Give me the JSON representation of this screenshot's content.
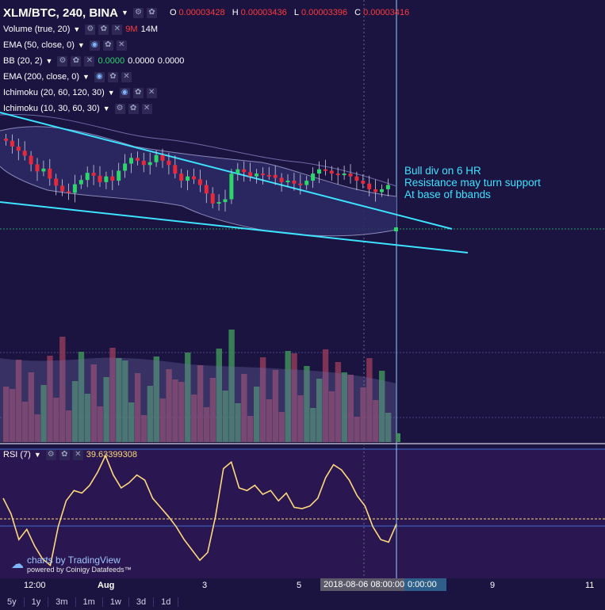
{
  "header": {
    "symbol": "XLM/BTC, 240, BINA",
    "ohlc": [
      {
        "key": "O",
        "value": "0.00003428"
      },
      {
        "key": "H",
        "value": "0.00003436"
      },
      {
        "key": "L",
        "value": "0.00003396"
      },
      {
        "key": "C",
        "value": "0.00003416"
      }
    ]
  },
  "indicators": {
    "volume": {
      "label": "Volume (true, 20)",
      "v1": "9M",
      "v2": "14M"
    },
    "ema50": {
      "label": "EMA (50, close, 0)"
    },
    "bb": {
      "label": "BB (20, 2)",
      "v1": "0.0000",
      "v2": "0.0000",
      "v3": "0.0000"
    },
    "ema200": {
      "label": "EMA (200, close, 0)"
    },
    "ichimoku1": {
      "label": "Ichimoku (20, 60, 120, 30)"
    },
    "ichimoku2": {
      "label": "Ichimoku (10, 30, 60, 30)"
    },
    "rsi": {
      "label": "RSI (7)",
      "value": "39.63399308"
    }
  },
  "annotation": {
    "line1": "Bull div on 6 HR",
    "line2": "Resistance may turn support",
    "line3": "At base of bbands"
  },
  "x_axis": {
    "labels": [
      "12:00",
      "Aug",
      "3",
      "5",
      "9",
      "11"
    ],
    "highlight_date": "2018-08-06 08:00:00",
    "highlight_time": "0:00:00"
  },
  "watermark": {
    "brand": "charts by TradingView",
    "powered": "powered by Coinigy Datafeeds™"
  },
  "timeframes": [
    "5y",
    "1y",
    "3m",
    "1m",
    "1w",
    "3d",
    "1d"
  ],
  "colors": {
    "background": "#1b1340",
    "up": "#2cd66a",
    "down": "#e8293b",
    "trendline": "#3de3ff",
    "rsi_line": "#ffd97d"
  },
  "chart_data": {
    "type": "candlestick",
    "candles_close_relative": [
      0.95,
      0.9,
      0.85,
      0.8,
      0.75,
      0.7,
      0.72,
      0.6,
      0.55,
      0.52,
      0.5,
      0.58,
      0.65,
      0.7,
      0.72,
      0.66,
      0.7,
      0.78,
      0.8,
      0.75,
      0.72,
      0.65
    ],
    "rsi_series": [
      10,
      5,
      2,
      8,
      15,
      25,
      30,
      45,
      60,
      65,
      55,
      70,
      80,
      75,
      60,
      50,
      40,
      55,
      65,
      58,
      60,
      45,
      30,
      25,
      28
    ]
  }
}
